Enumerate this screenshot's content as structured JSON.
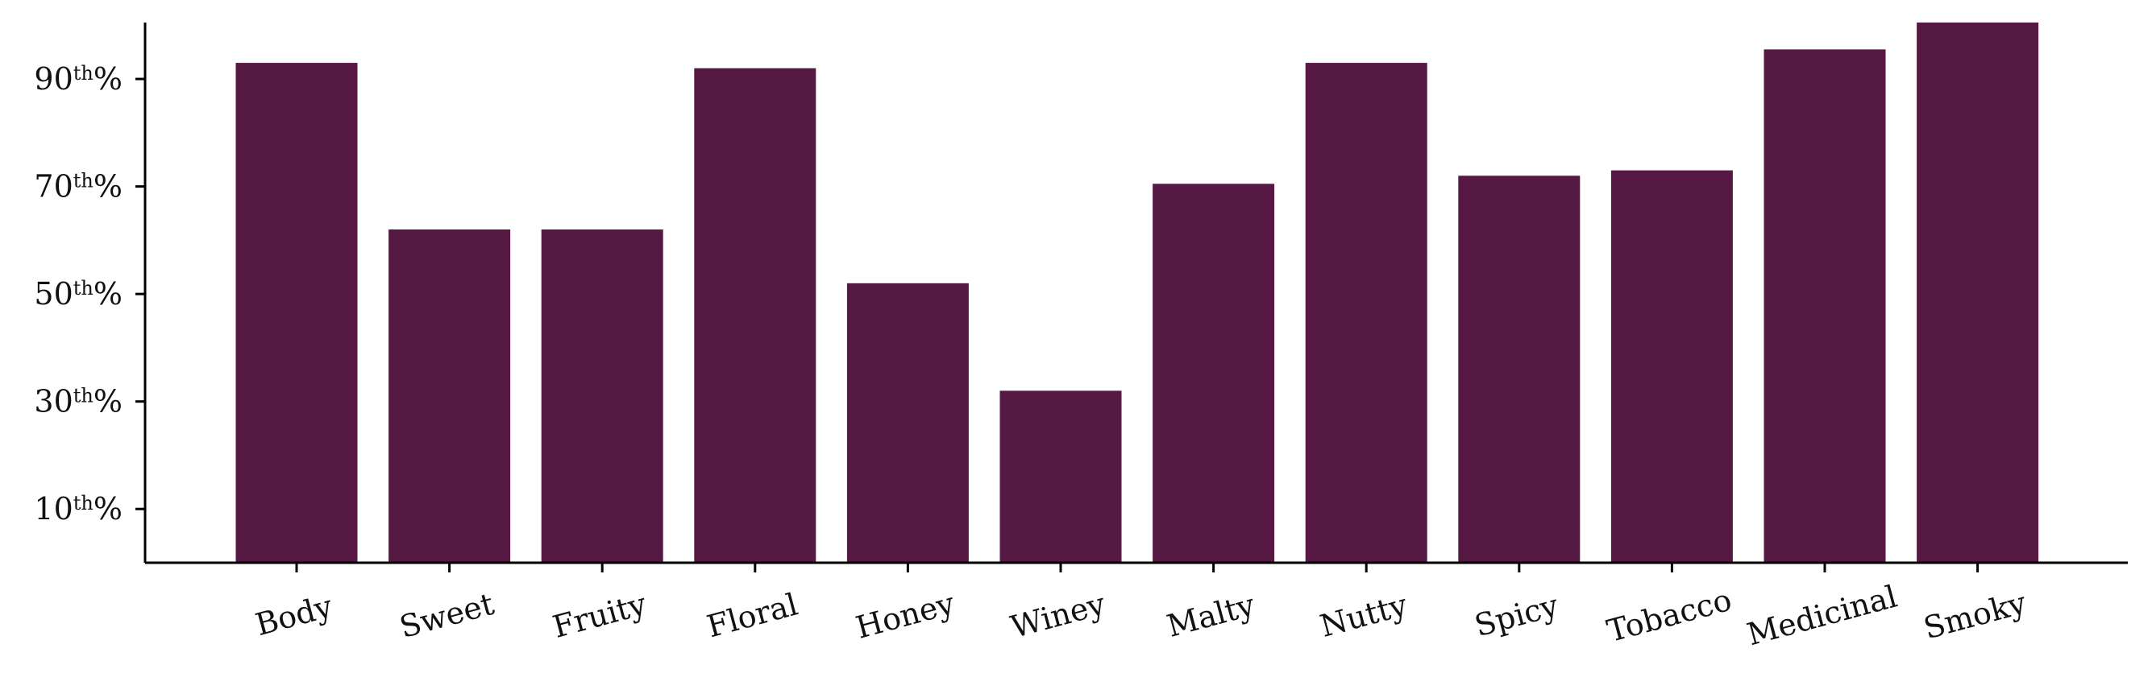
{
  "chart_data": {
    "type": "bar",
    "categories": [
      "Body",
      "Sweet",
      "Fruity",
      "Floral",
      "Honey",
      "Winey",
      "Malty",
      "Nutty",
      "Spicy",
      "Tobacco",
      "Medicinal",
      "Smoky"
    ],
    "values": [
      93,
      62,
      62,
      92,
      52,
      32,
      70.5,
      93,
      72,
      73,
      95.5,
      100.5
    ],
    "ylim": [
      0,
      100.5
    ],
    "yticks": [
      {
        "value": 10,
        "num": "10",
        "sup": "th",
        "suffix": "%"
      },
      {
        "value": 30,
        "num": "30",
        "sup": "th",
        "suffix": "%"
      },
      {
        "value": 50,
        "num": "50",
        "sup": "th",
        "suffix": "%"
      },
      {
        "value": 70,
        "num": "70",
        "sup": "th",
        "suffix": "%"
      },
      {
        "value": 90,
        "num": "90",
        "sup": "th",
        "suffix": "%"
      }
    ],
    "bar_color": "#561944",
    "grid": false,
    "title": "",
    "xlabel": "",
    "ylabel": ""
  }
}
